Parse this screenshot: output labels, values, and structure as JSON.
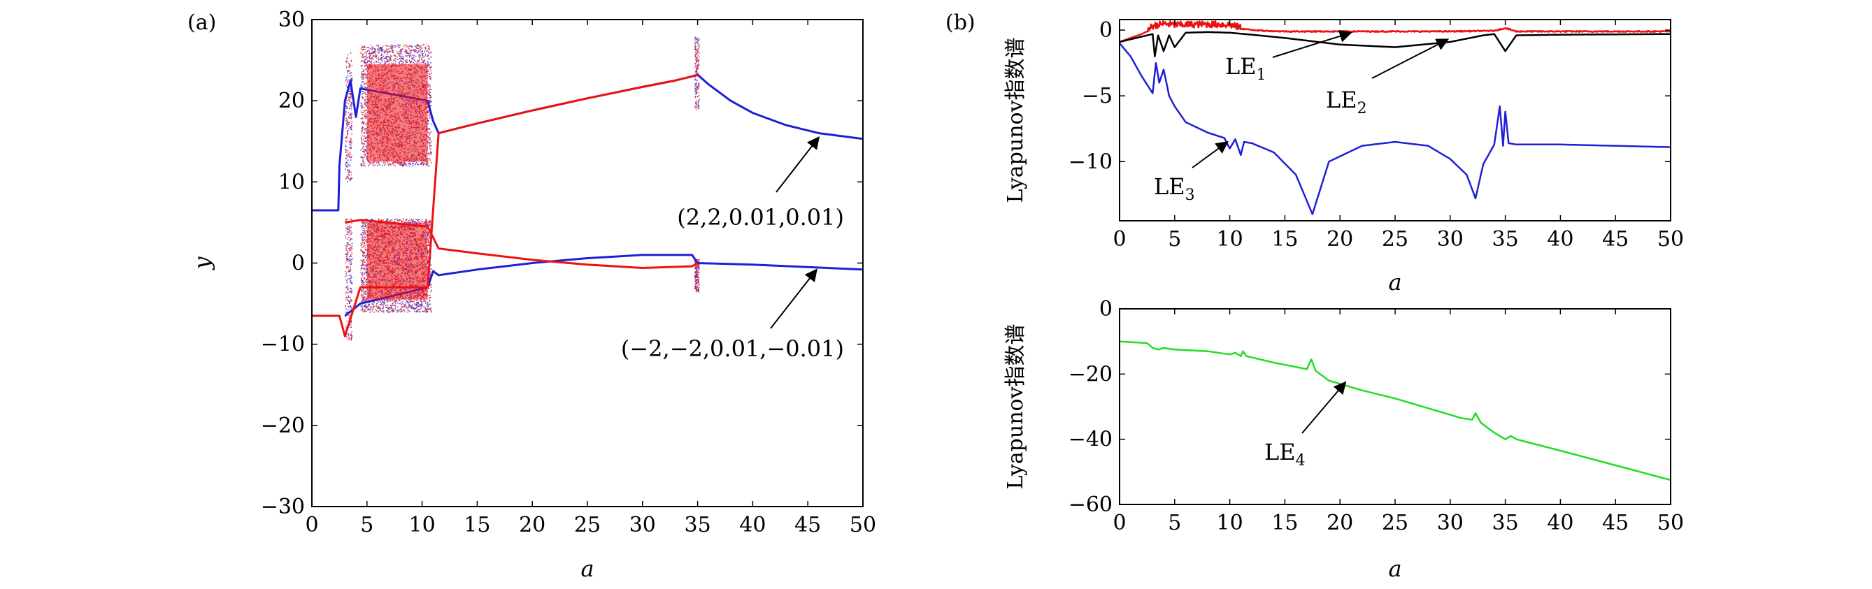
{
  "figure": {
    "panel_a_label": "(a)",
    "panel_b_label": "(b)"
  },
  "chart_data": [
    {
      "id": "a",
      "type": "scatter",
      "title": "",
      "xlabel": "a",
      "ylabel": "y",
      "xlim": [
        0,
        50
      ],
      "ylim": [
        -30,
        30
      ],
      "xticks": [
        0,
        5,
        10,
        15,
        20,
        25,
        30,
        35,
        40,
        45,
        50
      ],
      "yticks": [
        -30,
        -20,
        -10,
        0,
        10,
        20,
        30
      ],
      "tick_labels_x": [
        "0",
        "5",
        "10",
        "15",
        "20",
        "25",
        "30",
        "35",
        "40",
        "45",
        "50"
      ],
      "tick_labels_y": [
        "−30",
        "−20",
        "−10",
        "0",
        "10",
        "20",
        "30"
      ],
      "grid": false,
      "legend": "none",
      "series": [
        {
          "name": "(2,2,0.01,0.01)",
          "color": "#1f1fd6",
          "upper_branch": {
            "x": [
              0,
              2.4,
              2.5,
              3.0,
              3.5,
              4.0,
              4.4,
              10.5,
              11.0,
              11.5,
              15,
              20,
              25,
              30,
              33,
              34.5,
              35,
              36,
              38,
              40,
              43,
              46,
              50
            ],
            "y": [
              6.5,
              6.5,
              12,
              20,
              22.5,
              18,
              21.5,
              20,
              17.5,
              16,
              17.2,
              18.8,
              20.3,
              21.7,
              22.5,
              23.0,
              23.2,
              22.0,
              20.0,
              18.5,
              17.0,
              16.0,
              15.3
            ]
          },
          "lower_branch": {
            "x": [
              3.0,
              4.4,
              10.5,
              11.0,
              11.5,
              15,
              20,
              25,
              30,
              34.5,
              35,
              40,
              45,
              50
            ],
            "y": [
              -6.5,
              -5.0,
              -3.0,
              -1.0,
              -1.5,
              -0.8,
              0.0,
              0.6,
              1.0,
              1.0,
              0.0,
              -0.2,
              -0.5,
              -0.8
            ]
          },
          "chaotic_regions": [
            [
              3.0,
              3.6
            ],
            [
              4.4,
              10.8
            ],
            [
              34.7,
              35.1
            ]
          ]
        },
        {
          "name": "(−2,−2,0.01,−0.01)",
          "color": "#ee1111",
          "upper_branch": {
            "x": [
              3.0,
              4.4,
              10.5,
              11.5,
              15,
              20,
              25,
              30,
              34.5,
              35
            ],
            "y": [
              5.0,
              5.3,
              4.5,
              1.8,
              1.2,
              0.4,
              -0.2,
              -0.6,
              -0.4,
              0.0
            ]
          },
          "lower_branch": {
            "x": [
              0,
              2.4,
              2.5,
              3.0,
              4.4,
              10.5,
              11.5,
              15,
              20,
              25,
              30,
              33,
              34.5,
              35
            ],
            "y": [
              -6.5,
              -6.5,
              -6.5,
              -9.0,
              -3.0,
              -3.0,
              16.0,
              17.2,
              18.8,
              20.3,
              21.7,
              22.5,
              23.0,
              23.2
            ]
          },
          "chaotic_regions": [
            [
              3.0,
              3.6
            ],
            [
              4.4,
              10.8
            ],
            [
              34.7,
              35.1
            ]
          ]
        }
      ],
      "annotations": [
        {
          "text": "(2,2,0.01,0.01)",
          "arrow_to": [
            46.0,
            15.5
          ]
        },
        {
          "text": "(−2,−2,0.01,−0.01)",
          "arrow_to": [
            45.8,
            -0.8
          ]
        }
      ]
    },
    {
      "id": "b_top",
      "type": "line",
      "title": "",
      "xlabel": "a",
      "ylabel": "Lyapunov指数谱",
      "xlim": [
        0,
        50
      ],
      "ylim": [
        -14.5,
        0.8
      ],
      "xticks": [
        0,
        5,
        10,
        15,
        20,
        25,
        30,
        35,
        40,
        45,
        50
      ],
      "yticks": [
        -10,
        -5,
        0
      ],
      "tick_labels_x": [
        "0",
        "5",
        "10",
        "15",
        "20",
        "25",
        "30",
        "35",
        "40",
        "45",
        "50"
      ],
      "tick_labels_y": [
        "−10",
        "−5",
        "0"
      ],
      "grid": false,
      "legend": "none",
      "series": [
        {
          "name": "LE1",
          "color": "#ee1111",
          "x": [
            0,
            1,
            2,
            2.5,
            3,
            3.5,
            4,
            5,
            8,
            10,
            11,
            13,
            15,
            20,
            25,
            30,
            34,
            35,
            36,
            40,
            50
          ],
          "y": [
            -0.9,
            -0.6,
            -0.3,
            -0.1,
            0.2,
            0.3,
            0.4,
            0.3,
            0.35,
            0.3,
            0.1,
            -0.05,
            -0.1,
            -0.1,
            -0.1,
            -0.1,
            -0.05,
            0.15,
            -0.1,
            -0.1,
            -0.1
          ]
        },
        {
          "name": "LE2",
          "color": "#000000",
          "x": [
            0,
            2,
            3,
            3.2,
            3.5,
            4,
            4.5,
            5,
            6,
            8,
            10,
            12,
            15,
            20,
            25,
            30,
            33,
            34,
            35,
            36,
            40,
            50
          ],
          "y": [
            -0.9,
            -0.5,
            -0.3,
            -2.0,
            -0.4,
            -1.6,
            -0.4,
            -1.3,
            -0.2,
            -0.15,
            -0.2,
            -0.35,
            -0.6,
            -1.1,
            -1.3,
            -0.9,
            -0.4,
            -0.3,
            -1.6,
            -0.4,
            -0.35,
            -0.3
          ]
        },
        {
          "name": "LE3",
          "color": "#1f1fd6",
          "x": [
            0,
            1,
            2,
            3,
            3.3,
            3.6,
            4,
            4.5,
            5,
            6,
            8,
            9.5,
            10,
            10.5,
            11,
            11.3,
            12,
            14,
            16,
            17.5,
            19,
            22,
            25,
            28,
            30,
            31.5,
            32.3,
            33,
            34,
            34.5,
            34.8,
            35,
            35.3,
            36,
            40,
            45,
            50
          ],
          "y": [
            -1.0,
            -2.0,
            -3.5,
            -4.8,
            -2.5,
            -4.0,
            -3.0,
            -5.0,
            -5.8,
            -7.0,
            -7.8,
            -8.2,
            -9.0,
            -8.3,
            -9.5,
            -8.5,
            -8.6,
            -9.3,
            -11.0,
            -14.0,
            -10.0,
            -8.8,
            -8.5,
            -8.8,
            -9.8,
            -11.0,
            -12.8,
            -10.2,
            -8.7,
            -5.8,
            -8.8,
            -6.2,
            -8.6,
            -8.7,
            -8.7,
            -8.8,
            -8.9
          ]
        }
      ],
      "annotations": [
        {
          "text": "LE",
          "sub": "1",
          "arrow_to": [
            21.0,
            -0.2
          ]
        },
        {
          "text": "LE",
          "sub": "2",
          "arrow_to": [
            29.8,
            -0.7
          ]
        },
        {
          "text": "LE",
          "sub": "3",
          "arrow_to": [
            9.8,
            -8.5
          ]
        }
      ]
    },
    {
      "id": "b_bottom",
      "type": "line",
      "title": "",
      "xlabel": "a",
      "ylabel": "Lyapunov指数谱",
      "xlim": [
        0,
        50
      ],
      "ylim": [
        -60,
        0
      ],
      "xticks": [
        0,
        5,
        10,
        15,
        20,
        25,
        30,
        35,
        40,
        45,
        50
      ],
      "yticks": [
        -60,
        -40,
        -20,
        0
      ],
      "tick_labels_x": [
        "0",
        "5",
        "10",
        "15",
        "20",
        "25",
        "30",
        "35",
        "40",
        "45",
        "50"
      ],
      "tick_labels_y": [
        "−60",
        "−40",
        "−20",
        "0"
      ],
      "grid": false,
      "legend": "none",
      "series": [
        {
          "name": "LE4",
          "color": "#22dd22",
          "x": [
            0,
            2.5,
            3,
            3.5,
            4,
            5,
            8,
            10,
            10.5,
            11,
            11.2,
            11.5,
            14,
            17,
            17.4,
            17.8,
            19,
            22,
            25,
            28,
            31,
            32,
            32.3,
            32.8,
            34,
            35,
            35.5,
            36,
            40,
            45,
            50
          ],
          "y": [
            -10,
            -10.5,
            -12,
            -12.5,
            -12,
            -12.5,
            -13,
            -14,
            -13.5,
            -14.5,
            -13,
            -14.5,
            -16.5,
            -18.5,
            -15.5,
            -19,
            -22,
            -25,
            -27.5,
            -30.5,
            -33.5,
            -34,
            -32,
            -35,
            -38,
            -40,
            -39,
            -40,
            -43.5,
            -48,
            -52.5
          ]
        }
      ],
      "annotations": [
        {
          "text": "LE",
          "sub": "4",
          "arrow_to": [
            20.5,
            -22.5
          ]
        }
      ]
    }
  ]
}
